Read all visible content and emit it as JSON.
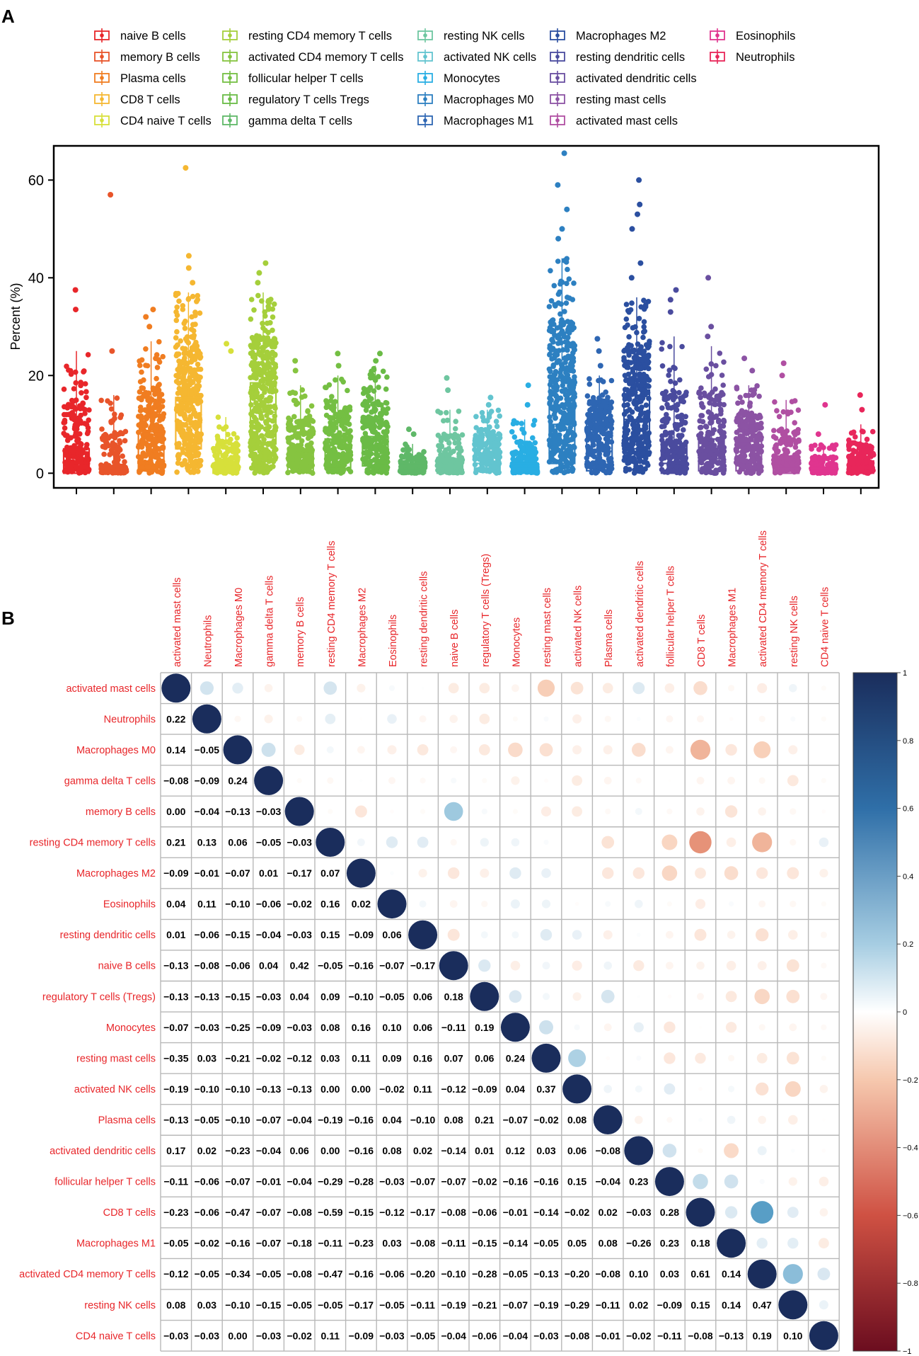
{
  "panels": {
    "a": "A",
    "b": "B"
  },
  "chart_data": [
    {
      "type": "box",
      "panel": "A",
      "title": "",
      "xlabel": "",
      "ylabel": "Percent (%)",
      "ylim": [
        -3,
        67
      ],
      "yticks": [
        0,
        20,
        40,
        60
      ],
      "legend_position": "top",
      "categories": [
        "naive B cells",
        "memory B cells",
        "Plasma cells",
        "CD8 T cells",
        "CD4 naive T cells",
        "resting CD4 memory T cells",
        "activated CD4 memory T cells",
        "follicular helper T cells",
        "regulatory T cells  Tregs",
        "gamma delta T cells",
        "resting NK cells",
        "activated NK cells",
        "Monocytes",
        "Macrophages M0",
        "Macrophages M1",
        "Macrophages M2",
        "resting dendritic cells",
        "activated dendritic cells",
        "resting mast cells",
        "activated mast cells",
        "Eosinophils",
        "Neutrophils"
      ],
      "colors": [
        "#e8262a",
        "#e8542a",
        "#f07d21",
        "#f5b731",
        "#d7e03a",
        "#a5cf3b",
        "#86c440",
        "#74bf43",
        "#6abb46",
        "#5fb868",
        "#6ec6a0",
        "#62c4cf",
        "#29aee3",
        "#2d80c1",
        "#2e66b3",
        "#2b4fa0",
        "#4a4b9e",
        "#6a4fa0",
        "#8c53a4",
        "#b04fa2",
        "#e0358f",
        "#e8265a"
      ],
      "boxes": [
        {
          "q1": 0,
          "median": 1.5,
          "q3": 5,
          "whislo": 0,
          "whishi": 25,
          "max": 37.5,
          "outliers": [
            33.5,
            37.5
          ]
        },
        {
          "q1": 0,
          "median": 0.5,
          "q3": 1.5,
          "whislo": 0,
          "whishi": 16,
          "max": 57,
          "outliers": [
            25,
            57
          ]
        },
        {
          "q1": 0.5,
          "median": 3.5,
          "q3": 8.5,
          "whislo": 0,
          "whishi": 27,
          "max": 33.5,
          "outliers": [
            30,
            32,
            33.5
          ]
        },
        {
          "q1": 5,
          "median": 9.5,
          "q3": 15.5,
          "whislo": 0,
          "whishi": 37,
          "max": 62.5,
          "outliers": [
            39,
            42,
            44.5,
            62.5
          ]
        },
        {
          "q1": 0,
          "median": 0.5,
          "q3": 2,
          "whislo": 0,
          "whishi": 11.5,
          "max": 26.5,
          "outliers": [
            25,
            26.5
          ]
        },
        {
          "q1": 6,
          "median": 12.5,
          "q3": 18.5,
          "whislo": 0,
          "whishi": 37,
          "max": 43,
          "outliers": [
            39,
            41,
            43
          ]
        },
        {
          "q1": 0.5,
          "median": 2,
          "q3": 5,
          "whislo": 0,
          "whishi": 18,
          "max": 23,
          "outliers": [
            21,
            23
          ]
        },
        {
          "q1": 1,
          "median": 3,
          "q3": 7,
          "whislo": 0,
          "whishi": 20,
          "max": 24.5,
          "outliers": [
            22,
            24.5
          ]
        },
        {
          "q1": 1.5,
          "median": 4,
          "q3": 7.5,
          "whislo": 0,
          "whishi": 22,
          "max": 24.5,
          "outliers": [
            23,
            24.5
          ]
        },
        {
          "q1": 0,
          "median": 0.5,
          "q3": 1.5,
          "whislo": 0,
          "whishi": 6,
          "max": 9,
          "outliers": [
            8,
            9
          ]
        },
        {
          "q1": 0,
          "median": 1.5,
          "q3": 3,
          "whislo": 0,
          "whishi": 13,
          "max": 19.5,
          "outliers": [
            17,
            19.5
          ]
        },
        {
          "q1": 0.5,
          "median": 2,
          "q3": 5,
          "whislo": 0,
          "whishi": 13,
          "max": 15.5,
          "outliers": [
            14,
            15.5
          ]
        },
        {
          "q1": 0,
          "median": 1,
          "q3": 2,
          "whislo": 0,
          "whishi": 11,
          "max": 18,
          "outliers": [
            14,
            18
          ]
        },
        {
          "q1": 2,
          "median": 10,
          "q3": 19,
          "whislo": 0,
          "whishi": 44,
          "max": 65.5,
          "outliers": [
            48,
            50,
            54,
            59,
            65.5
          ]
        },
        {
          "q1": 0.5,
          "median": 4.5,
          "q3": 10,
          "whislo": 0,
          "whishi": 20,
          "max": 27.5,
          "outliers": [
            22,
            25,
            27.5
          ]
        },
        {
          "q1": 5,
          "median": 11,
          "q3": 17,
          "whislo": 0,
          "whishi": 36,
          "max": 60,
          "outliers": [
            40,
            43,
            50,
            53,
            55,
            60
          ]
        },
        {
          "q1": 0,
          "median": 2,
          "q3": 6,
          "whislo": 0,
          "whishi": 28,
          "max": 37.5,
          "outliers": [
            33,
            35.5,
            37.5
          ]
        },
        {
          "q1": 0.5,
          "median": 3,
          "q3": 7,
          "whislo": 0,
          "whishi": 26,
          "max": 40,
          "outliers": [
            28,
            30,
            40
          ]
        },
        {
          "q1": 0.5,
          "median": 2.5,
          "q3": 6.5,
          "whislo": 0,
          "whishi": 18,
          "max": 23.5,
          "outliers": [
            21,
            23.5
          ]
        },
        {
          "q1": 0,
          "median": 1,
          "q3": 3.5,
          "whislo": 0,
          "whishi": 15,
          "max": 22.5,
          "outliers": [
            20,
            22.5
          ]
        },
        {
          "q1": 0,
          "median": 0.5,
          "q3": 1,
          "whislo": 0,
          "whishi": 6,
          "max": 14,
          "outliers": [
            8,
            14
          ]
        },
        {
          "q1": 0,
          "median": 1,
          "q3": 2.5,
          "whislo": 0,
          "whishi": 10,
          "max": 16,
          "outliers": [
            13,
            16
          ]
        }
      ]
    },
    {
      "type": "heatmap",
      "panel": "B",
      "title": "",
      "labels": [
        "activated mast cells",
        "Neutrophils",
        "Macrophages M0",
        "gamma delta T cells",
        "memory B cells",
        "resting CD4 memory T cells",
        "Macrophages M2",
        "Eosinophils",
        "resting dendritic cells",
        "naive B cells",
        "regulatory T cells (Tregs)",
        "Monocytes",
        "resting mast cells",
        "activated NK cells",
        "Plasma cells",
        "activated dendritic cells",
        "follicular helper T cells",
        "CD8 T cells",
        "Macrophages M1",
        "activated CD4 memory T cells",
        "resting NK cells",
        "CD4 naive T cells"
      ],
      "lower_triangle_values": [
        [
          1
        ],
        [
          0.22,
          1
        ],
        [
          0.14,
          -0.05,
          1
        ],
        [
          -0.08,
          -0.09,
          0.24,
          1
        ],
        [
          0.0,
          -0.04,
          -0.13,
          -0.03,
          1
        ],
        [
          0.21,
          0.13,
          0.06,
          -0.05,
          -0.03,
          1
        ],
        [
          -0.09,
          -0.01,
          -0.07,
          0.01,
          -0.17,
          0.07,
          1
        ],
        [
          0.04,
          0.11,
          -0.1,
          -0.06,
          -0.02,
          0.16,
          0.02,
          1
        ],
        [
          0.01,
          -0.06,
          -0.15,
          -0.04,
          -0.03,
          0.15,
          -0.09,
          0.06,
          1
        ],
        [
          -0.13,
          -0.08,
          -0.06,
          0.04,
          0.42,
          -0.05,
          -0.16,
          -0.07,
          -0.17,
          1
        ],
        [
          -0.13,
          -0.13,
          -0.15,
          -0.03,
          0.04,
          0.09,
          -0.1,
          -0.05,
          0.06,
          0.18,
          1
        ],
        [
          -0.07,
          -0.03,
          -0.25,
          -0.09,
          -0.03,
          0.08,
          0.16,
          0.1,
          0.06,
          -0.11,
          0.19,
          1
        ],
        [
          -0.35,
          0.03,
          -0.21,
          -0.02,
          -0.12,
          0.03,
          0.11,
          0.09,
          0.16,
          0.07,
          0.06,
          0.24,
          1
        ],
        [
          -0.19,
          -0.1,
          -0.1,
          -0.13,
          -0.13,
          0.0,
          0.0,
          -0.02,
          0.11,
          -0.12,
          -0.09,
          0.04,
          0.37,
          1
        ],
        [
          -0.13,
          -0.05,
          -0.1,
          -0.07,
          -0.04,
          -0.19,
          -0.16,
          0.04,
          -0.1,
          0.08,
          0.21,
          -0.07,
          -0.02,
          0.08,
          1
        ],
        [
          0.17,
          0.02,
          -0.23,
          -0.04,
          0.06,
          0.0,
          -0.16,
          0.08,
          0.02,
          -0.14,
          0.01,
          0.12,
          0.03,
          0.06,
          -0.08,
          1
        ],
        [
          -0.11,
          -0.06,
          -0.07,
          -0.01,
          -0.04,
          -0.29,
          -0.28,
          -0.03,
          -0.07,
          -0.07,
          -0.02,
          -0.16,
          -0.16,
          0.15,
          -0.04,
          0.23,
          1
        ],
        [
          -0.23,
          -0.06,
          -0.47,
          -0.07,
          -0.08,
          -0.59,
          -0.15,
          -0.12,
          -0.17,
          -0.08,
          -0.06,
          -0.01,
          -0.14,
          -0.02,
          0.02,
          -0.03,
          0.28,
          1
        ],
        [
          -0.05,
          -0.02,
          -0.16,
          -0.07,
          -0.18,
          -0.11,
          -0.23,
          0.03,
          -0.08,
          -0.11,
          -0.15,
          -0.14,
          -0.05,
          0.05,
          0.08,
          -0.26,
          0.23,
          0.18,
          1
        ],
        [
          -0.12,
          -0.05,
          -0.34,
          -0.05,
          -0.08,
          -0.47,
          -0.16,
          -0.06,
          -0.2,
          -0.1,
          -0.28,
          -0.05,
          -0.13,
          -0.2,
          -0.08,
          0.1,
          0.03,
          0.61,
          0.14,
          1
        ],
        [
          0.08,
          0.03,
          -0.1,
          -0.15,
          -0.05,
          -0.05,
          -0.17,
          -0.05,
          -0.11,
          -0.19,
          -0.21,
          -0.07,
          -0.19,
          -0.29,
          -0.11,
          0.02,
          -0.09,
          0.15,
          0.14,
          0.47,
          1
        ],
        [
          -0.03,
          -0.03,
          0.0,
          -0.03,
          -0.02,
          0.11,
          -0.09,
          -0.03,
          -0.05,
          -0.04,
          -0.06,
          -0.04,
          -0.03,
          -0.08,
          -0.01,
          -0.02,
          -0.11,
          -0.08,
          -0.13,
          0.19,
          0.1,
          1
        ]
      ],
      "colorbar": {
        "ticks": [
          "1",
          "0.8",
          "0.6",
          "0.4",
          "0.2",
          "0",
          "−0.2",
          "−0.4",
          "−0.6",
          "−0.8",
          "−1"
        ],
        "tick_values": [
          1,
          0.8,
          0.6,
          0.4,
          0.2,
          0,
          -0.2,
          -0.4,
          -0.6,
          -0.8,
          -1
        ],
        "positive_color": "#1a2d5c",
        "negative_color": "#6b0d1f",
        "mid_color": "#ffffff",
        "label_color": "#e8262a"
      }
    }
  ]
}
